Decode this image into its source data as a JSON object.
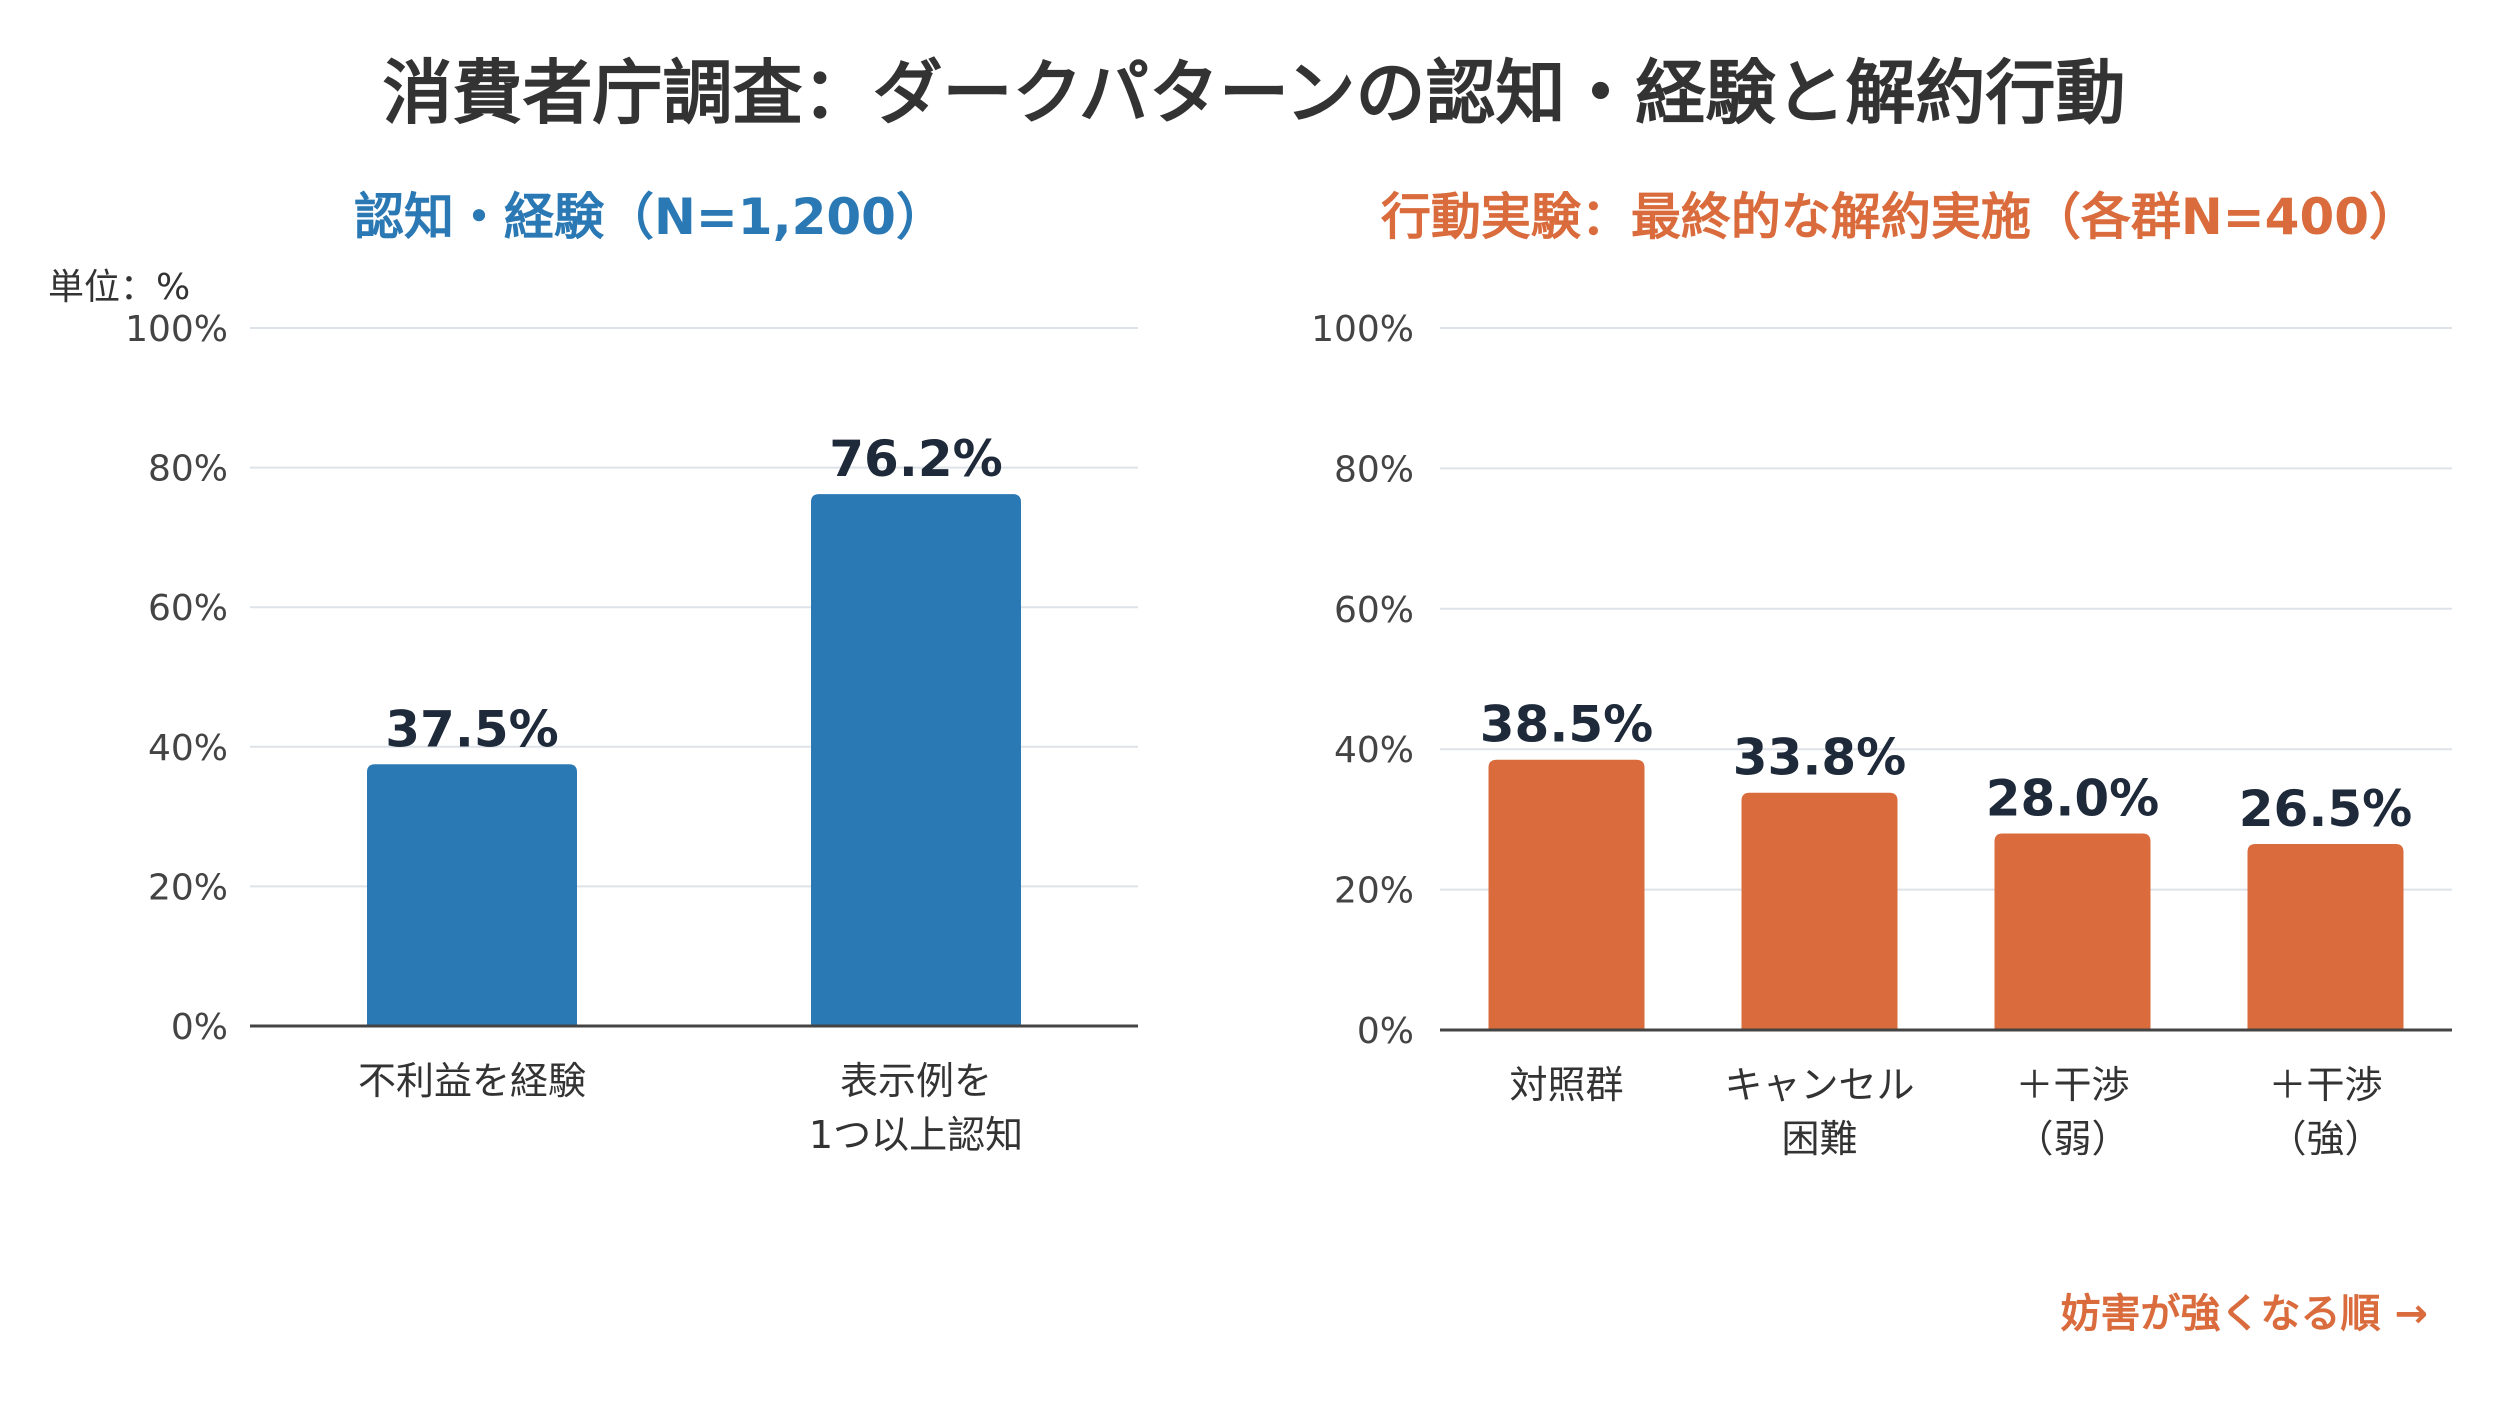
{
  "title": "消費者庁調査：ダークパターンの認知・経験と解約行動",
  "unit_label": "単位：%",
  "order_note": "妨害が強くなる順 →",
  "colors": {
    "left": "#2a78b4",
    "right": "#d96b3c",
    "grid": "#dde3e8",
    "axis": "#444444"
  },
  "chart_data": [
    {
      "type": "bar",
      "title": "認知・経験（N=1,200）",
      "categories": [
        [
          "不利益を経験"
        ],
        [
          "表示例を",
          "1つ以上認知"
        ]
      ],
      "values": [
        37.5,
        76.2
      ],
      "value_labels": [
        "37.5%",
        "76.2%"
      ],
      "ylim": [
        0,
        100
      ],
      "yticks": [
        0,
        20,
        40,
        60,
        80,
        100
      ],
      "ytick_labels": [
        "0%",
        "20%",
        "40%",
        "60%",
        "80%",
        "100%"
      ],
      "grid": true
    },
    {
      "type": "bar",
      "title": "行動実験：最終的な解約実施（各群N=400）",
      "categories": [
        [
          "対照群"
        ],
        [
          "キャンセル",
          "困難"
        ],
        [
          "＋干渉",
          "（弱）"
        ],
        [
          "＋干渉",
          "（強）"
        ]
      ],
      "values": [
        38.5,
        33.8,
        28.0,
        26.5
      ],
      "value_labels": [
        "38.5%",
        "33.8%",
        "28.0%",
        "26.5%"
      ],
      "ylim": [
        0,
        100
      ],
      "yticks": [
        0,
        20,
        40,
        60,
        80,
        100
      ],
      "ytick_labels": [
        "0%",
        "20%",
        "40%",
        "60%",
        "80%",
        "100%"
      ],
      "grid": true
    }
  ]
}
